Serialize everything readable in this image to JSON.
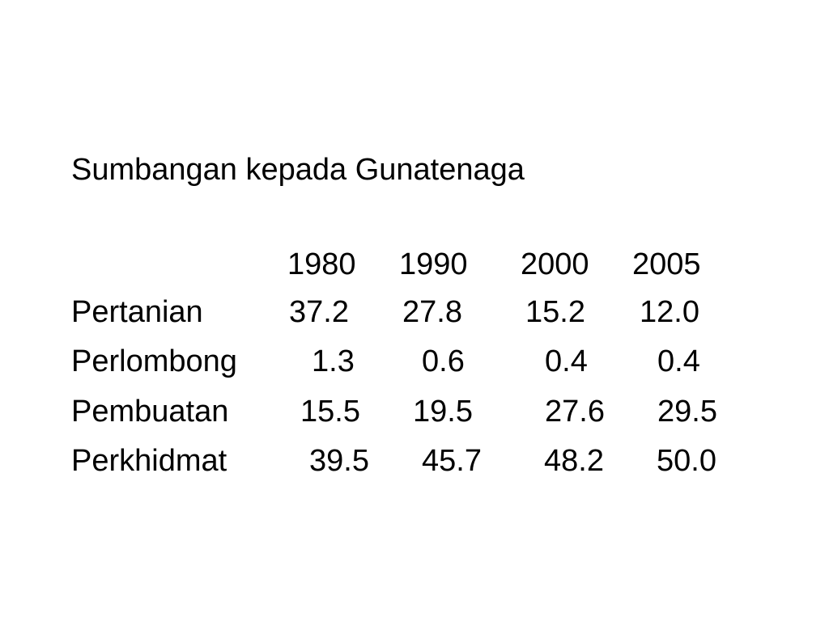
{
  "title": "Sumbangan kepada Gunatenaga",
  "table": {
    "header": [
      "1980",
      "1990",
      "2000",
      "2005"
    ],
    "rows": [
      [
        "Pertanian",
        "37.2",
        "27.8",
        "15.2",
        "12.0"
      ],
      [
        "Perlombong",
        "1.3",
        "0.6",
        "0.4",
        "0.4"
      ],
      [
        "Pembuatan",
        "15.5",
        "19.5",
        "27.6",
        "29.5"
      ],
      [
        "Perkhidmat",
        "39.5",
        "45.7",
        "48.2",
        "50.0"
      ]
    ]
  }
}
